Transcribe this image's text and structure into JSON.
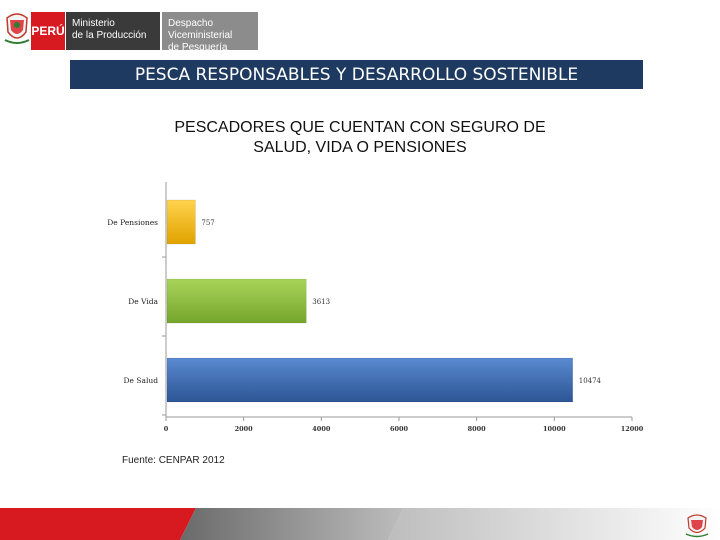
{
  "header": {
    "peru_label": "PERÚ",
    "ministry_line1": "Ministerio",
    "ministry_line2": "de la Producción",
    "vice_line1": "Despacho Viceministerial",
    "vice_line2": "de Pesquería"
  },
  "banner_title": "PESCA RESPONSABLES Y DESARROLLO SOSTENIBLE",
  "chart_data": {
    "type": "bar",
    "orientation": "horizontal",
    "title_line1": "PESCADORES QUE CUENTAN CON SEGURO DE",
    "title_line2": "SALUD, VIDA O PENSIONES",
    "categories": [
      "De Pensiones",
      "De Vida",
      "De Salud"
    ],
    "values": [
      757,
      3613,
      10474
    ],
    "value_labels": [
      "757",
      "3613",
      "10474"
    ],
    "colors": [
      "#f2b90f",
      "#8fbd3c",
      "#3b6db0"
    ],
    "xlim": [
      0,
      12000
    ],
    "xticks": [
      "0",
      "2000",
      "4000",
      "6000",
      "8000",
      "10000",
      "12000"
    ],
    "xlabel": "",
    "ylabel": "",
    "grid": false,
    "legend": "none"
  },
  "source": "Fuente: CENPAR 2012",
  "colors": {
    "banner": "#1f3a60",
    "red": "#d71920",
    "dark_gray": "#3a3a3a",
    "mid_gray": "#8c8c8c"
  }
}
